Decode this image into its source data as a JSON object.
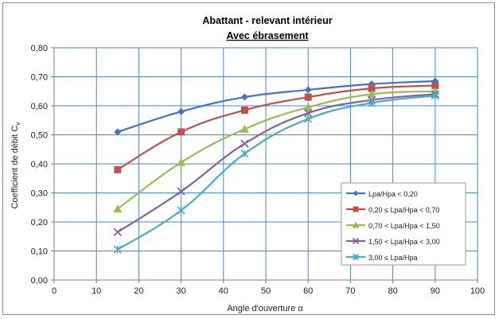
{
  "chart_data": {
    "type": "line",
    "title": "Abattant - relevant intérieur",
    "subtitle": "Avec ébrasement",
    "xlabel": "Angle d'ouverture α",
    "ylabel": "Coefficient  de débit C",
    "ylabel_subscript": "v",
    "xlim": [
      0,
      100
    ],
    "ylim": [
      0,
      0.8
    ],
    "x_ticks": [
      0,
      10,
      20,
      30,
      40,
      50,
      60,
      70,
      80,
      90,
      100
    ],
    "x_tick_labels": [
      "0",
      "10",
      "20",
      "30",
      "40",
      "50",
      "60",
      "70",
      "80",
      "90",
      "100"
    ],
    "y_ticks": [
      0,
      0.1,
      0.2,
      0.3,
      0.4,
      0.5,
      0.6,
      0.7,
      0.8
    ],
    "y_tick_labels": [
      "0,00",
      "0,10",
      "0,20",
      "0,30",
      "0,40",
      "0,50",
      "0,60",
      "0,70",
      "0,80"
    ],
    "grid": true,
    "legend_position": "bottom-right",
    "x": [
      15,
      30,
      45,
      60,
      75,
      90
    ],
    "series": [
      {
        "name": "Lpa/Hpa < 0,20",
        "color": "#4472c4",
        "marker": "diamond",
        "values": [
          0.51,
          0.58,
          0.63,
          0.655,
          0.675,
          0.685
        ]
      },
      {
        "name": "0,20 ≤ Lpa/Hpa < 0,70",
        "color": "#c0504d",
        "marker": "square",
        "values": [
          0.38,
          0.51,
          0.585,
          0.63,
          0.66,
          0.67
        ]
      },
      {
        "name": "0,70 < Lpa/Hpa < 1,50",
        "color": "#9bbb59",
        "marker": "triangle",
        "values": [
          0.245,
          0.405,
          0.52,
          0.595,
          0.64,
          0.65
        ]
      },
      {
        "name": "1,50 < Lpa/Hpa < 3,00",
        "color": "#8064a2",
        "marker": "x",
        "values": [
          0.165,
          0.305,
          0.47,
          0.575,
          0.62,
          0.64
        ]
      },
      {
        "name": "3,00 ≤ Lpa/Hpa",
        "color": "#4bacc6",
        "marker": "star",
        "values": [
          0.105,
          0.24,
          0.435,
          0.555,
          0.61,
          0.635
        ]
      }
    ]
  }
}
